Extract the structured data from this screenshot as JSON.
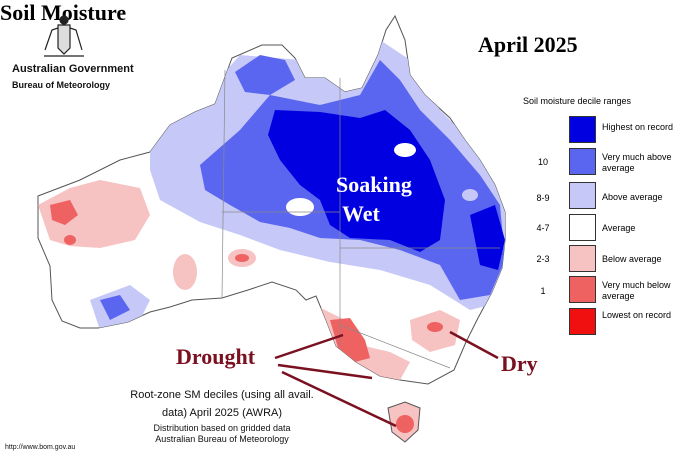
{
  "header": {
    "government": "Australian Government",
    "bureau": "Bureau of Meteorology",
    "title": "April 2025"
  },
  "legend": {
    "title": "Soil moisture decile ranges",
    "items": [
      {
        "range": "",
        "label": "Highest on record",
        "color": "#0000e0"
      },
      {
        "range": "10",
        "label": "Very much above average",
        "color": "#5a66f0"
      },
      {
        "range": "8-9",
        "label": "Above average",
        "color": "#c6c9f7"
      },
      {
        "range": "4-7",
        "label": "Average",
        "color": "#ffffff"
      },
      {
        "range": "2-3",
        "label": "Below average",
        "color": "#f7c2c2"
      },
      {
        "range": "1",
        "label": "Very much below average",
        "color": "#ef6262"
      },
      {
        "range": "",
        "label": "Lowest on record",
        "color": "#f01010"
      }
    ]
  },
  "annotations": {
    "soaking": "Soaking",
    "wet": "Wet",
    "drought": "Drought",
    "dry": "Dry",
    "soil_moisture": "Soil Moisture"
  },
  "caption": {
    "line1": "Root-zone SM deciles (using all avail.",
    "line2": "data) April 2025 (AWRA)",
    "line3": "Distribution based on gridded data",
    "line4": "Australian Bureau of Meteorology"
  },
  "url": "http://www.bom.gov.au"
}
